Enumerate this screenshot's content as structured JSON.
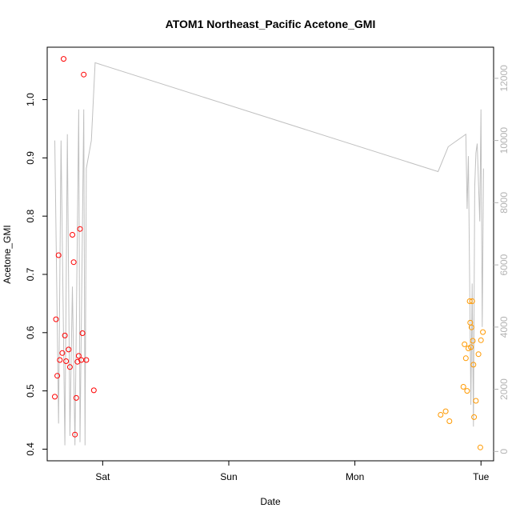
{
  "chart_data": {
    "type": "scatter",
    "title": "ATOM1 Northeast_Pacific Acetone_GMI",
    "xlabel": "Date",
    "ylabel": "Acetone_GMI",
    "x_unit": "days",
    "xlim": [
      0,
      3.54
    ],
    "ylim": [
      0.38,
      1.09
    ],
    "y2lim": [
      -300,
      13000
    ],
    "x_ticks": [
      {
        "value": 0.44,
        "label": "Sat"
      },
      {
        "value": 1.44,
        "label": "Sun"
      },
      {
        "value": 2.44,
        "label": "Mon"
      },
      {
        "value": 3.44,
        "label": "Tue"
      }
    ],
    "y_ticks": [
      0.4,
      0.5,
      0.6,
      0.7,
      0.8,
      0.9,
      1.0
    ],
    "y2_ticks": [
      0,
      2000,
      4000,
      6000,
      8000,
      10000,
      12000
    ],
    "grid": false,
    "colors": {
      "series1": "#ff0000",
      "series2": "#ff9900",
      "secondary_line": "#c0c0c0"
    },
    "series": [
      {
        "color": "#ff0000",
        "points": [
          {
            "x": 0.06,
            "y": 0.49
          },
          {
            "x": 0.07,
            "y": 0.623
          },
          {
            "x": 0.08,
            "y": 0.526
          },
          {
            "x": 0.09,
            "y": 0.733
          },
          {
            "x": 0.1,
            "y": 0.553
          },
          {
            "x": 0.12,
            "y": 0.565
          },
          {
            "x": 0.13,
            "y": 1.07
          },
          {
            "x": 0.14,
            "y": 0.595
          },
          {
            "x": 0.15,
            "y": 0.551
          },
          {
            "x": 0.17,
            "y": 0.571
          },
          {
            "x": 0.18,
            "y": 0.541
          },
          {
            "x": 0.2,
            "y": 0.768
          },
          {
            "x": 0.21,
            "y": 0.721
          },
          {
            "x": 0.22,
            "y": 0.425
          },
          {
            "x": 0.23,
            "y": 0.488
          },
          {
            "x": 0.24,
            "y": 0.55
          },
          {
            "x": 0.25,
            "y": 0.56
          },
          {
            "x": 0.26,
            "y": 0.778
          },
          {
            "x": 0.27,
            "y": 0.553
          },
          {
            "x": 0.28,
            "y": 0.599
          },
          {
            "x": 0.29,
            "y": 1.043
          },
          {
            "x": 0.31,
            "y": 0.553
          },
          {
            "x": 0.37,
            "y": 0.501
          }
        ]
      },
      {
        "color": "#ff9900",
        "points": [
          {
            "x": 3.12,
            "y": 0.459
          },
          {
            "x": 3.16,
            "y": 0.465
          },
          {
            "x": 3.19,
            "y": 0.448
          },
          {
            "x": 3.3,
            "y": 0.507
          },
          {
            "x": 3.31,
            "y": 0.58
          },
          {
            "x": 3.32,
            "y": 0.556
          },
          {
            "x": 3.33,
            "y": 0.5
          },
          {
            "x": 3.34,
            "y": 0.573
          },
          {
            "x": 3.35,
            "y": 0.654
          },
          {
            "x": 3.355,
            "y": 0.617
          },
          {
            "x": 3.36,
            "y": 0.575
          },
          {
            "x": 3.365,
            "y": 0.609
          },
          {
            "x": 3.37,
            "y": 0.654
          },
          {
            "x": 3.375,
            "y": 0.586
          },
          {
            "x": 3.38,
            "y": 0.545
          },
          {
            "x": 3.385,
            "y": 0.455
          },
          {
            "x": 3.4,
            "y": 0.483
          },
          {
            "x": 3.42,
            "y": 0.563
          },
          {
            "x": 3.435,
            "y": 0.403
          },
          {
            "x": 3.44,
            "y": 0.587
          },
          {
            "x": 3.455,
            "y": 0.601
          }
        ]
      }
    ],
    "secondary_line": {
      "axis": "right",
      "points": [
        {
          "x": 0.06,
          "y": 10000
        },
        {
          "x": 0.09,
          "y": 900
        },
        {
          "x": 0.11,
          "y": 10000
        },
        {
          "x": 0.14,
          "y": 200
        },
        {
          "x": 0.16,
          "y": 10200
        },
        {
          "x": 0.18,
          "y": 500
        },
        {
          "x": 0.2,
          "y": 5300
        },
        {
          "x": 0.22,
          "y": 200
        },
        {
          "x": 0.25,
          "y": 11000
        },
        {
          "x": 0.26,
          "y": 300
        },
        {
          "x": 0.29,
          "y": 11000
        },
        {
          "x": 0.3,
          "y": 200
        },
        {
          "x": 0.31,
          "y": 9100
        },
        {
          "x": 0.35,
          "y": 10000
        },
        {
          "x": 0.38,
          "y": 12500
        },
        {
          "x": 3.1,
          "y": 9000
        },
        {
          "x": 3.18,
          "y": 9800
        },
        {
          "x": 3.32,
          "y": 10200
        },
        {
          "x": 3.33,
          "y": 7800
        },
        {
          "x": 3.34,
          "y": 9500
        },
        {
          "x": 3.36,
          "y": 1500
        },
        {
          "x": 3.37,
          "y": 5400
        },
        {
          "x": 3.38,
          "y": 800
        },
        {
          "x": 3.39,
          "y": 8500
        },
        {
          "x": 3.4,
          "y": 9600
        },
        {
          "x": 3.41,
          "y": 9900
        },
        {
          "x": 3.43,
          "y": 7400
        },
        {
          "x": 3.44,
          "y": 11000
        },
        {
          "x": 3.45,
          "y": 4000
        },
        {
          "x": 3.46,
          "y": 9100
        }
      ]
    }
  }
}
